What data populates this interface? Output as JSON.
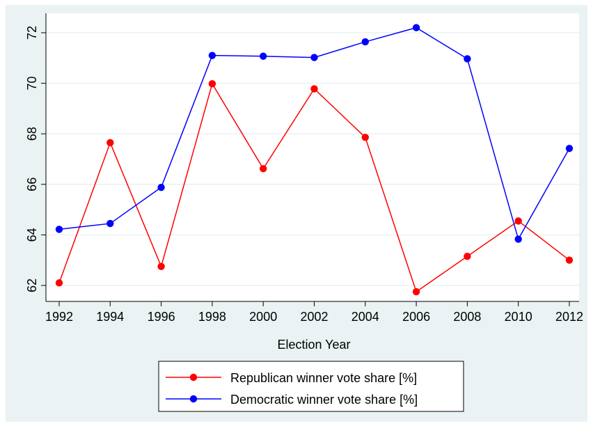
{
  "chart_data": {
    "type": "line",
    "title": "",
    "xlabel": "Election Year",
    "ylabel": "",
    "x": [
      1992,
      1994,
      1996,
      1998,
      2000,
      2002,
      2004,
      2006,
      2008,
      2010,
      2012
    ],
    "xticks": [
      "1992",
      "1994",
      "1996",
      "1998",
      "2000",
      "2002",
      "2004",
      "2006",
      "2008",
      "2010",
      "2012"
    ],
    "yticks": [
      "62",
      "64",
      "66",
      "68",
      "70",
      "72"
    ],
    "xlim": [
      1992,
      2012
    ],
    "ylim": [
      61.5,
      72.6
    ],
    "grid": true,
    "legend_position": "bottom",
    "series": [
      {
        "name": "Republican winner vote share [%]",
        "color": "#ff0000",
        "values": [
          62.1,
          67.65,
          62.75,
          69.98,
          66.62,
          69.78,
          67.86,
          61.75,
          63.15,
          64.55,
          63.0
        ]
      },
      {
        "name": "Democratic winner vote share [%]",
        "color": "#0000ff",
        "values": [
          64.22,
          64.45,
          65.88,
          71.1,
          71.07,
          71.02,
          71.64,
          72.2,
          70.97,
          63.83,
          67.42
        ]
      }
    ],
    "background_color": "#eaf2f3",
    "plot_background": "#ffffff",
    "grid_color": "#eaf2f3"
  }
}
